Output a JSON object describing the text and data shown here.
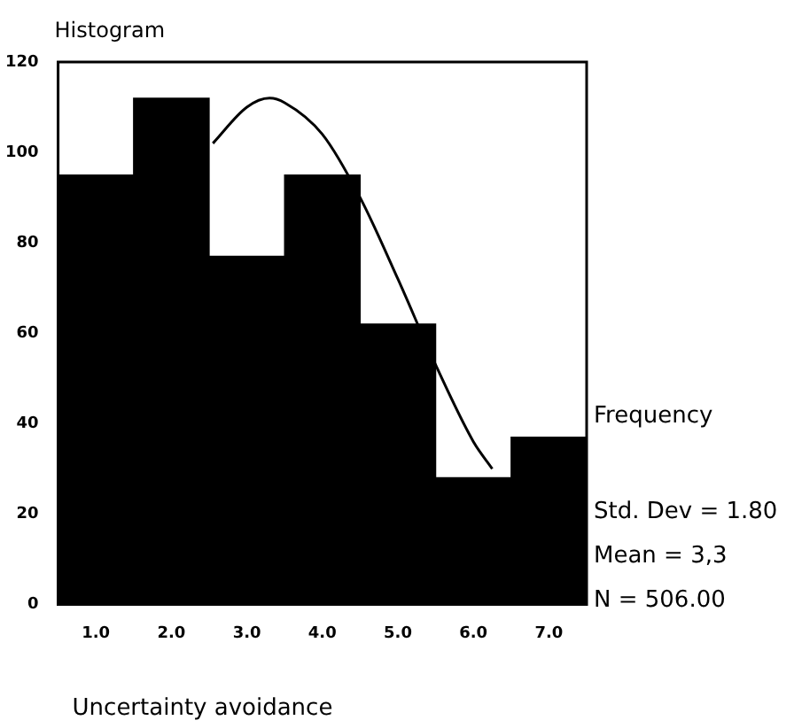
{
  "chart_data": {
    "type": "histogram",
    "title": "Histogram",
    "xlabel": "Uncertainty avoidance",
    "ylabel": "Frequency",
    "bins": [
      0.5,
      1.5,
      2.5,
      3.5,
      4.5,
      5.5,
      6.5,
      7.5
    ],
    "values": [
      95,
      112,
      77,
      95,
      62,
      28,
      37
    ],
    "color": "#000000",
    "series": [
      {
        "type": "line",
        "color": "#000000",
        "x": [
          2.55,
          3.0,
          3.3,
          3.5,
          4.0,
          4.5,
          5.0,
          5.5,
          6.0,
          6.25
        ],
        "values": [
          102,
          110,
          112,
          111,
          104,
          90,
          72,
          53,
          36,
          30
        ]
      }
    ],
    "xlim": [
      0.5,
      7.5
    ],
    "ylim": [
      0,
      120
    ],
    "xticks": [
      {
        "value": 1,
        "label": "1.0"
      },
      {
        "value": 2,
        "label": "2.0"
      },
      {
        "value": 3,
        "label": "3.0"
      },
      {
        "value": 4,
        "label": "4.0"
      },
      {
        "value": 5,
        "label": "5.0"
      },
      {
        "value": 6,
        "label": "6.0"
      },
      {
        "value": 7,
        "label": "7.0"
      }
    ],
    "yticks": [
      0,
      20,
      40,
      60,
      80,
      100,
      120
    ],
    "annotations": [
      "Std. Dev = 1.80",
      "Mean = 3,3",
      "N = 506.00"
    ],
    "grid": false,
    "legend": false,
    "marker": "none",
    "line_style": "solid"
  }
}
